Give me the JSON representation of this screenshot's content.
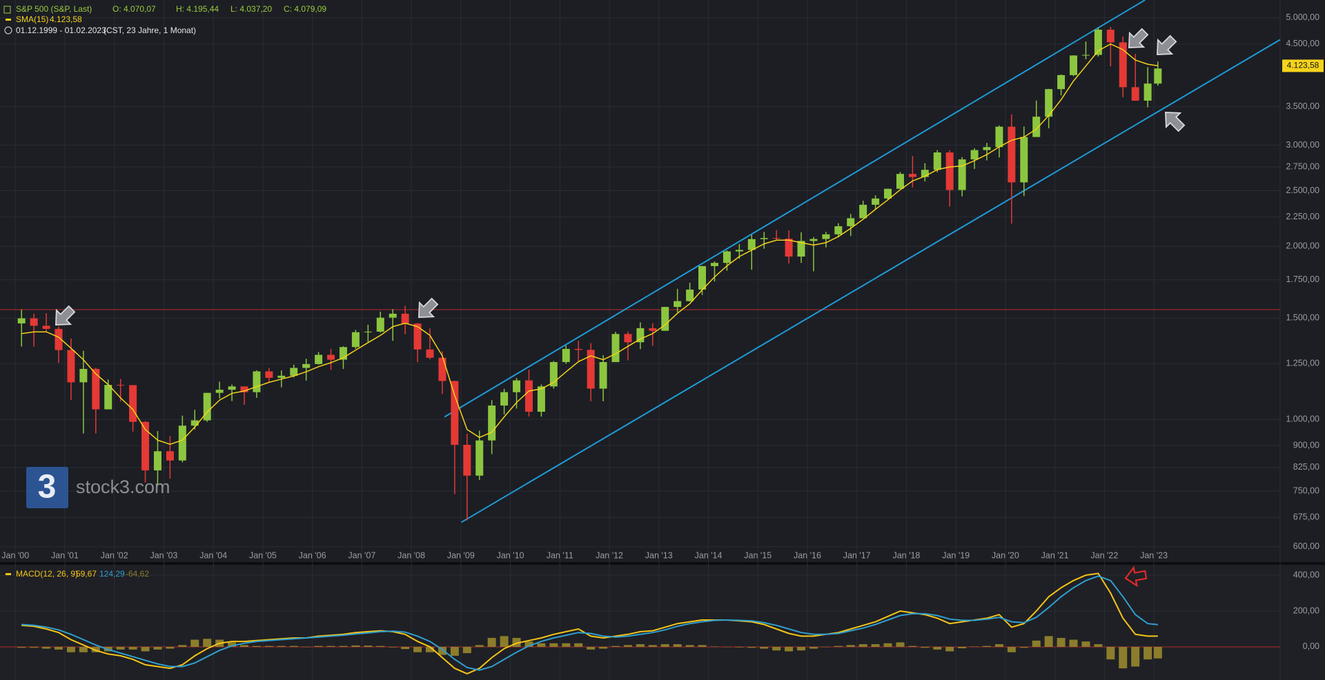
{
  "chart_data": [
    {
      "type": "candlestick",
      "title": "S&P 500 (S&P, Last)",
      "ohlc_header": [
        "O: 4.070,07",
        "H: 4.195,44",
        "L: 4.037,20",
        "C: 4.079,09"
      ],
      "date_range": "01.12.1999 - 01.02.2023",
      "range_note": "(CST, 23 Jahre, 1 Monat)",
      "watermark": "stock3.com",
      "watermark_logo": "3",
      "log_scale": true,
      "grid": true,
      "up_color": "#8cc63f",
      "down_color": "#e53935",
      "xlim": [
        1999.69,
        2025.55
      ],
      "ylim": [
        566,
        5368
      ],
      "xticks": [
        {
          "value": 2000,
          "label": "Jan '00"
        },
        {
          "value": 2001,
          "label": "Jan '01"
        },
        {
          "value": 2002,
          "label": "Jan '02"
        },
        {
          "value": 2003,
          "label": "Jan '03"
        },
        {
          "value": 2004,
          "label": "Jan '04"
        },
        {
          "value": 2005,
          "label": "Jan '05"
        },
        {
          "value": 2006,
          "label": "Jan '06"
        },
        {
          "value": 2007,
          "label": "Jan '07"
        },
        {
          "value": 2008,
          "label": "Jan '08"
        },
        {
          "value": 2009,
          "label": "Jan '09"
        },
        {
          "value": 2010,
          "label": "Jan '10"
        },
        {
          "value": 2011,
          "label": "Jan '11"
        },
        {
          "value": 2012,
          "label": "Jan '12"
        },
        {
          "value": 2013,
          "label": "Jan '13"
        },
        {
          "value": 2014,
          "label": "Jan '14"
        },
        {
          "value": 2015,
          "label": "Jan '15"
        },
        {
          "value": 2016,
          "label": "Jan '16"
        },
        {
          "value": 2017,
          "label": "Jan '17"
        },
        {
          "value": 2018,
          "label": "Jan '18"
        },
        {
          "value": 2019,
          "label": "Jan '19"
        },
        {
          "value": 2020,
          "label": "Jan '20"
        },
        {
          "value": 2021,
          "label": "Jan '21"
        },
        {
          "value": 2022,
          "label": "Jan '22"
        },
        {
          "value": 2023,
          "label": "Jan '23"
        }
      ],
      "yticks": [
        {
          "value": 600,
          "label": "600,00"
        },
        {
          "value": 675,
          "label": "675,00"
        },
        {
          "value": 750,
          "label": "750,00"
        },
        {
          "value": 825,
          "label": "825,00"
        },
        {
          "value": 900,
          "label": "900,00"
        },
        {
          "value": 1000,
          "label": "1.000,00"
        },
        {
          "value": 1250,
          "label": "1.250,00"
        },
        {
          "value": 1500,
          "label": "1.500,00"
        },
        {
          "value": 1750,
          "label": "1.750,00"
        },
        {
          "value": 2000,
          "label": "2.000,00"
        },
        {
          "value": 2250,
          "label": "2.250,00"
        },
        {
          "value": 2500,
          "label": "2.500,00"
        },
        {
          "value": 2750,
          "label": "2.750,00"
        },
        {
          "value": 3000,
          "label": "3.000,00"
        },
        {
          "value": 3500,
          "label": "3.500,00"
        },
        {
          "value": 4500,
          "label": "4.500,00"
        },
        {
          "value": 5000,
          "label": "5.000,00"
        }
      ],
      "x": [
        2000.125,
        2000.375,
        2000.625,
        2000.875,
        2001.125,
        2001.375,
        2001.625,
        2001.875,
        2002.125,
        2002.375,
        2002.625,
        2002.875,
        2003.125,
        2003.375,
        2003.625,
        2003.875,
        2004.125,
        2004.375,
        2004.625,
        2004.875,
        2005.125,
        2005.375,
        2005.625,
        2005.875,
        2006.125,
        2006.375,
        2006.625,
        2006.875,
        2007.125,
        2007.375,
        2007.625,
        2007.875,
        2008.125,
        2008.375,
        2008.625,
        2008.875,
        2009.125,
        2009.375,
        2009.625,
        2009.875,
        2010.125,
        2010.375,
        2010.625,
        2010.875,
        2011.125,
        2011.375,
        2011.625,
        2011.875,
        2012.125,
        2012.375,
        2012.625,
        2012.875,
        2013.125,
        2013.375,
        2013.625,
        2013.875,
        2014.125,
        2014.375,
        2014.625,
        2014.875,
        2015.125,
        2015.375,
        2015.625,
        2015.875,
        2016.125,
        2016.375,
        2016.625,
        2016.875,
        2017.125,
        2017.375,
        2017.625,
        2017.875,
        2018.125,
        2018.375,
        2018.625,
        2018.875,
        2019.125,
        2019.375,
        2019.625,
        2019.875,
        2020.125,
        2020.375,
        2020.625,
        2020.875,
        2021.125,
        2021.375,
        2021.625,
        2021.875,
        2022.125,
        2022.375,
        2022.625,
        2022.875,
        2023.08
      ],
      "open": [
        1469,
        1499,
        1455,
        1437,
        1320,
        1160,
        1224,
        1041,
        1148,
        1147,
        990,
        815,
        880,
        848,
        975,
        996,
        1112,
        1126,
        1141,
        1115,
        1212,
        1181,
        1191,
        1229,
        1248,
        1295,
        1270,
        1336,
        1418,
        1421,
        1503,
        1527,
        1468,
        1323,
        1280,
        1166,
        903,
        798,
        919,
        1057,
        1115,
        1169,
        1031,
        1141,
        1258,
        1326,
        1321,
        1131,
        1258,
        1408,
        1362,
        1441,
        1426,
        1569,
        1606,
        1682,
        1848,
        1872,
        1960,
        1972,
        2059,
        2068,
        2063,
        1920,
        2044,
        2060,
        2099,
        2168,
        2239,
        2363,
        2423,
        2519,
        2674,
        2641,
        2718,
        2914,
        2507,
        2834,
        2942,
        2977,
        3231,
        2585,
        3100,
        3363,
        3756,
        3973,
        4298,
        4308,
        4766,
        4530,
        3785,
        3586,
        3840
      ],
      "high": [
        1553,
        1527,
        1530,
        1450,
        1383,
        1316,
        1230,
        1173,
        1176,
        1147,
        993,
        954,
        935,
        1015,
        1039,
        1112,
        1163,
        1150,
        1141,
        1217,
        1229,
        1217,
        1245,
        1275,
        1310,
        1326,
        1340,
        1431,
        1461,
        1540,
        1555,
        1576,
        1471,
        1440,
        1313,
        1167,
        944,
        956,
        1080,
        1130,
        1180,
        1220,
        1150,
        1263,
        1344,
        1370,
        1357,
        1293,
        1420,
        1422,
        1475,
        1470,
        1570,
        1687,
        1729,
        1849,
        1883,
        1968,
        2019,
        2094,
        2119,
        2135,
        2133,
        2116,
        2076,
        2120,
        2194,
        2278,
        2401,
        2454,
        2520,
        2695,
        2873,
        2791,
        2941,
        2940,
        2860,
        2964,
        3028,
        3247,
        3394,
        3233,
        3588,
        3760,
        3983,
        4302,
        4546,
        4808,
        4819,
        4637,
        4325,
        4101,
        4195
      ],
      "low": [
        1339,
        1339,
        1420,
        1254,
        1081,
        945,
        945,
        1041,
        1074,
        952,
        776,
        768,
        789,
        842,
        960,
        990,
        1087,
        1076,
        1060,
        1090,
        1163,
        1137,
        1183,
        1168,
        1245,
        1219,
        1224,
        1327,
        1364,
        1416,
        1370,
        1406,
        1257,
        1272,
        1107,
        741,
        667,
        784,
        870,
        1020,
        1044,
        1011,
        1011,
        1131,
        1249,
        1258,
        1075,
        1075,
        1258,
        1267,
        1325,
        1343,
        1426,
        1536,
        1604,
        1646,
        1737,
        1814,
        1904,
        1821,
        1981,
        2046,
        1867,
        1872,
        1810,
        1992,
        2074,
        2084,
        2245,
        2322,
        2406,
        2520,
        2533,
        2594,
        2692,
        2346,
        2444,
        2728,
        2822,
        2856,
        2192,
        2447,
        3115,
        3210,
        3663,
        3956,
        4233,
        4279,
        4115,
        3637,
        3584,
        3492,
        3808
      ],
      "close": [
        1499,
        1455,
        1437,
        1320,
        1160,
        1224,
        1041,
        1148,
        1147,
        990,
        815,
        880,
        848,
        975,
        996,
        1112,
        1126,
        1141,
        1115,
        1212,
        1181,
        1191,
        1229,
        1248,
        1295,
        1270,
        1336,
        1418,
        1421,
        1503,
        1527,
        1468,
        1323,
        1280,
        1166,
        903,
        798,
        919,
        1057,
        1115,
        1169,
        1031,
        1141,
        1258,
        1326,
        1321,
        1131,
        1258,
        1408,
        1362,
        1441,
        1426,
        1569,
        1606,
        1682,
        1848,
        1872,
        1960,
        1972,
        2059,
        2068,
        2063,
        1920,
        2044,
        2060,
        2099,
        2168,
        2239,
        2363,
        2423,
        2519,
        2674,
        2641,
        2718,
        2914,
        2507,
        2834,
        2942,
        2977,
        3231,
        2585,
        3100,
        3363,
        3756,
        3973,
        4298,
        4308,
        4766,
        4530,
        3785,
        3586,
        3840,
        4079
      ],
      "sma": {
        "name": "SMA(15)",
        "color": "#f5d31b",
        "last_value_label": "4.123,58",
        "values": [
          1410,
          1420,
          1420,
          1390,
          1330,
          1270,
          1200,
          1150,
          1090,
          1040,
          960,
          920,
          905,
          920,
          970,
          1030,
          1080,
          1110,
          1120,
          1140,
          1160,
          1175,
          1190,
          1210,
          1235,
          1255,
          1280,
          1320,
          1360,
          1400,
          1450,
          1470,
          1450,
          1400,
          1290,
          1100,
          960,
          930,
          950,
          1010,
          1070,
          1120,
          1130,
          1160,
          1210,
          1260,
          1290,
          1270,
          1300,
          1340,
          1380,
          1410,
          1460,
          1530,
          1590,
          1680,
          1770,
          1850,
          1920,
          1970,
          2020,
          2050,
          2050,
          2030,
          2010,
          2030,
          2080,
          2150,
          2230,
          2320,
          2410,
          2510,
          2600,
          2650,
          2720,
          2750,
          2760,
          2820,
          2890,
          2980,
          3060,
          3100,
          3200,
          3380,
          3600,
          3880,
          4120,
          4380,
          4500,
          4400,
          4220,
          4150,
          4123.58
        ]
      },
      "trendlines": [
        {
          "color": "#1f9bd7",
          "x": [
            2008.67,
            2022.82
          ],
          "y": [
            1010,
            5368
          ]
        },
        {
          "color": "#1f9bd7",
          "x": [
            2009.01,
            2025.55
          ],
          "y": [
            662,
            4579
          ]
        }
      ],
      "reference_lines": [
        {
          "value": 1552,
          "color": "#9b2a2a"
        }
      ]
    },
    {
      "type": "macd",
      "title": "MACD(12, 26, 9)",
      "grid": true,
      "ylim": [
        -185,
        454
      ],
      "yticks": [
        {
          "value": 0,
          "label": "0,00"
        },
        {
          "value": 200,
          "label": "200,00"
        },
        {
          "value": 400,
          "label": "400,00"
        }
      ],
      "series": [
        {
          "type": "line",
          "color": "#f5c518",
          "last_value_label": "59,67",
          "values": [
            120,
            115,
            100,
            80,
            40,
            10,
            -20,
            -40,
            -50,
            -70,
            -100,
            -110,
            -120,
            -100,
            -50,
            -10,
            20,
            30,
            30,
            35,
            40,
            45,
            50,
            50,
            60,
            65,
            70,
            80,
            85,
            90,
            85,
            70,
            30,
            0,
            -60,
            -120,
            -150,
            -120,
            -60,
            -10,
            20,
            35,
            50,
            70,
            85,
            100,
            60,
            50,
            60,
            70,
            85,
            90,
            110,
            130,
            140,
            150,
            150,
            150,
            145,
            140,
            125,
            100,
            75,
            60,
            60,
            70,
            80,
            100,
            120,
            140,
            170,
            200,
            190,
            180,
            160,
            130,
            140,
            150,
            160,
            180,
            110,
            130,
            200,
            280,
            330,
            370,
            400,
            410,
            300,
            160,
            70,
            60,
            59.67
          ]
        },
        {
          "type": "line",
          "color": "#2f9fd0",
          "last_value_label": "124,29",
          "values": [
            125,
            120,
            110,
            95,
            70,
            40,
            10,
            -15,
            -35,
            -55,
            -75,
            -95,
            -110,
            -110,
            -90,
            -55,
            -20,
            5,
            20,
            30,
            35,
            40,
            45,
            50,
            55,
            60,
            65,
            72,
            78,
            85,
            88,
            82,
            60,
            30,
            -15,
            -70,
            -115,
            -130,
            -110,
            -70,
            -30,
            5,
            30,
            50,
            65,
            80,
            75,
            60,
            55,
            60,
            70,
            80,
            95,
            115,
            130,
            140,
            148,
            150,
            148,
            145,
            135,
            120,
            100,
            80,
            70,
            70,
            75,
            90,
            105,
            125,
            150,
            175,
            185,
            185,
            175,
            155,
            148,
            148,
            155,
            165,
            140,
            135,
            165,
            220,
            280,
            330,
            370,
            395,
            370,
            280,
            180,
            130,
            124.29
          ]
        },
        {
          "type": "bar",
          "color": "#8c7d2c",
          "last_value_label": "-64,62",
          "values": [
            -5,
            -5,
            -10,
            -15,
            -30,
            -30,
            -30,
            -25,
            -15,
            -15,
            -25,
            -15,
            -10,
            10,
            40,
            45,
            40,
            25,
            10,
            5,
            5,
            5,
            5,
            0,
            5,
            5,
            5,
            8,
            7,
            5,
            -3,
            -12,
            -30,
            -30,
            -45,
            -50,
            -35,
            10,
            50,
            60,
            50,
            30,
            20,
            20,
            20,
            20,
            -15,
            -10,
            5,
            10,
            15,
            10,
            15,
            15,
            10,
            10,
            2,
            0,
            -3,
            -5,
            -10,
            -20,
            -25,
            -20,
            -10,
            0,
            5,
            10,
            15,
            15,
            20,
            25,
            5,
            -5,
            -15,
            -25,
            -8,
            2,
            5,
            15,
            -30,
            -5,
            35,
            60,
            50,
            40,
            30,
            15,
            -70,
            -120,
            -110,
            -70,
            -64.62
          ]
        }
      ]
    }
  ]
}
